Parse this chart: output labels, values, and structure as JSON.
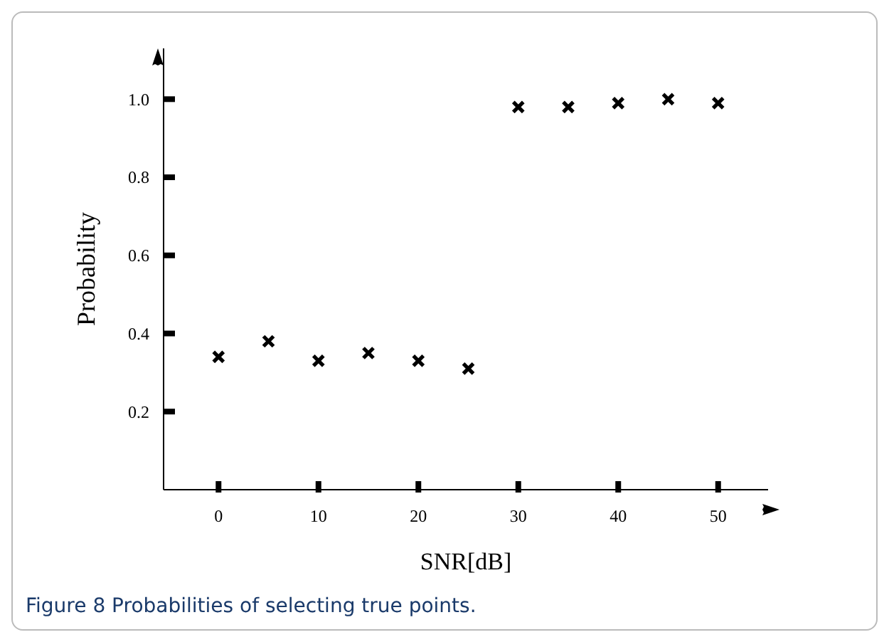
{
  "chart_data": {
    "type": "scatter",
    "xlabel": "SNR[dB]",
    "ylabel": "Probability",
    "x": [
      0,
      5,
      10,
      15,
      20,
      25,
      30,
      35,
      40,
      45,
      50
    ],
    "series": [
      {
        "color": "#000000",
        "values": [
          0.34,
          0.38,
          0.33,
          0.35,
          0.33,
          0.31,
          0.98,
          0.98,
          0.99,
          1.0,
          0.99
        ]
      }
    ],
    "xlim": [
      -5.5,
      55
    ],
    "xticks": [
      0,
      10,
      20,
      30,
      40,
      50
    ],
    "ylim": [
      0,
      1.13
    ],
    "yticks": [
      0.2,
      0.4,
      0.6,
      0.8,
      {
        "value": 1,
        "label": "1.0"
      }
    ],
    "marker": "cross",
    "grid": false,
    "legend": false,
    "annotations": [
      "Figure 8 Probabilities of selecting true points."
    ]
  }
}
